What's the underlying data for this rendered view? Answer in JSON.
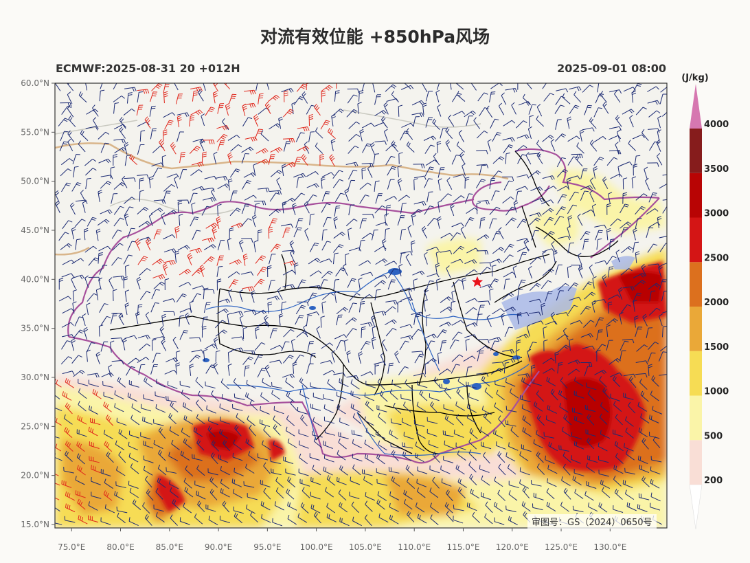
{
  "title": "对流有效位能 +850hPa风场",
  "run_label": "ECMWF:2025-08-31 20 +012H",
  "valid_label": "2025-09-01 08:00",
  "approval": "审图号：GS（2024）0650号",
  "axes": {
    "lat_ticks": [
      "60.0°N",
      "55.0°N",
      "50.0°N",
      "45.0°N",
      "40.0°N",
      "35.0°N",
      "30.0°N",
      "25.0°N",
      "20.0°N",
      "15.0°N"
    ],
    "lon_ticks": [
      "75.0°E",
      "80.0°E",
      "85.0°E",
      "90.0°E",
      "95.0°E",
      "100.0°E",
      "105.0°E",
      "110.0°E",
      "115.0°E",
      "120.0°E",
      "125.0°E",
      "130.0°E"
    ],
    "lat_range": [
      15,
      60
    ],
    "lon_range": [
      73.3,
      135.8
    ]
  },
  "colorbar": {
    "unit": "(J/kg)",
    "levels": [
      "200",
      "500",
      "1000",
      "1500",
      "2000",
      "2500",
      "3000",
      "3500",
      "4000"
    ],
    "colors": [
      "#f9ded6",
      "#faf4a8",
      "#f6dc54",
      "#eaa838",
      "#dc701e",
      "#d41515",
      "#b80404",
      "#861c1c",
      "#d677b0"
    ]
  },
  "capital_marker": "red-star",
  "colors": {
    "background": "#f4f3ee",
    "province_border": "#000000",
    "national_border": "#a7509c",
    "river": "#2d63c2",
    "barb_normal": "#1b2a73",
    "barb_strong": "#e0261b"
  }
}
